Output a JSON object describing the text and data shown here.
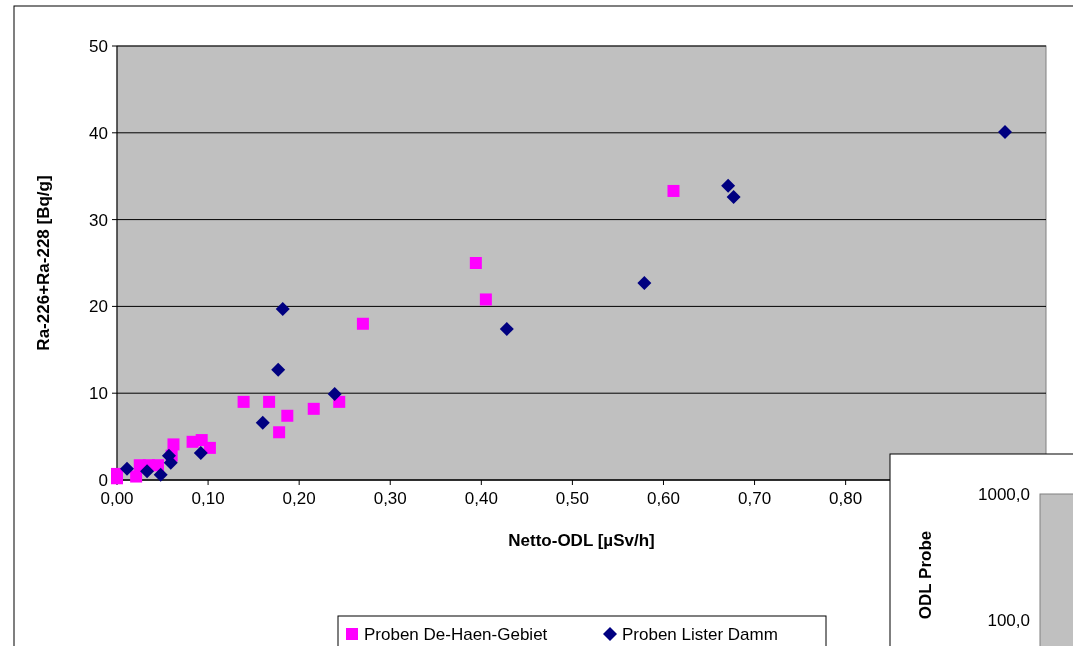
{
  "chart_data": [
    {
      "type": "scatter",
      "xlabel": "Netto-ODL [µSv/h]",
      "ylabel": "Ra-226+Ra-228 [Bq/g]",
      "xlim": [
        0,
        1.02
      ],
      "ylim": [
        0,
        50
      ],
      "xticks": [
        {
          "value": 0,
          "label": "0,00"
        },
        {
          "value": 0.1,
          "label": "0,10"
        },
        {
          "value": 0.2,
          "label": "0,20"
        },
        {
          "value": 0.3,
          "label": "0,30"
        },
        {
          "value": 0.4,
          "label": "0,40"
        },
        {
          "value": 0.5,
          "label": "0,50"
        },
        {
          "value": 0.6,
          "label": "0,60"
        },
        {
          "value": 0.7,
          "label": "0,70"
        },
        {
          "value": 0.8,
          "label": "0,80"
        }
      ],
      "yticks": [
        0,
        10,
        20,
        30,
        40,
        50
      ],
      "grid": "y",
      "legend": "bottom",
      "series": [
        {
          "name": "Proben De-Haen-Gebiet",
          "color": "#ff00ff",
          "marker": "square",
          "x": [
            0,
            0,
            0.021,
            0.025,
            0.035,
            0.045,
            0.062,
            0.06,
            0.083,
            0.093,
            0.102,
            0.139,
            0.167,
            0.187,
            0.178,
            0.216,
            0.244,
            0.27,
            0.394,
            0.405,
            0.611
          ],
          "values": [
            0.2,
            0.7,
            0.4,
            1.7,
            1.7,
            1.7,
            4.1,
            2.8,
            4.4,
            4.6,
            3.7,
            9.0,
            9.0,
            7.4,
            5.5,
            8.2,
            9.0,
            18.0,
            25.0,
            20.8,
            33.3
          ]
        },
        {
          "name": "Proben Lister Damm",
          "color": "#000080",
          "marker": "diamond",
          "x": [
            0.011,
            0.033,
            0.048,
            0.057,
            0.059,
            0.092,
            0.16,
            0.177,
            0.239,
            0.182,
            0.428,
            0.579,
            0.671,
            0.677,
            0.975
          ],
          "values": [
            1.3,
            1.0,
            0.6,
            2.8,
            2.0,
            3.1,
            6.6,
            12.7,
            9.9,
            19.7,
            17.4,
            22.7,
            33.9,
            32.6,
            40.1
          ]
        }
      ]
    },
    {
      "type": "other",
      "ylabel": "ODL Probe",
      "annotations": [
        "1000,0",
        "100,0"
      ]
    }
  ]
}
